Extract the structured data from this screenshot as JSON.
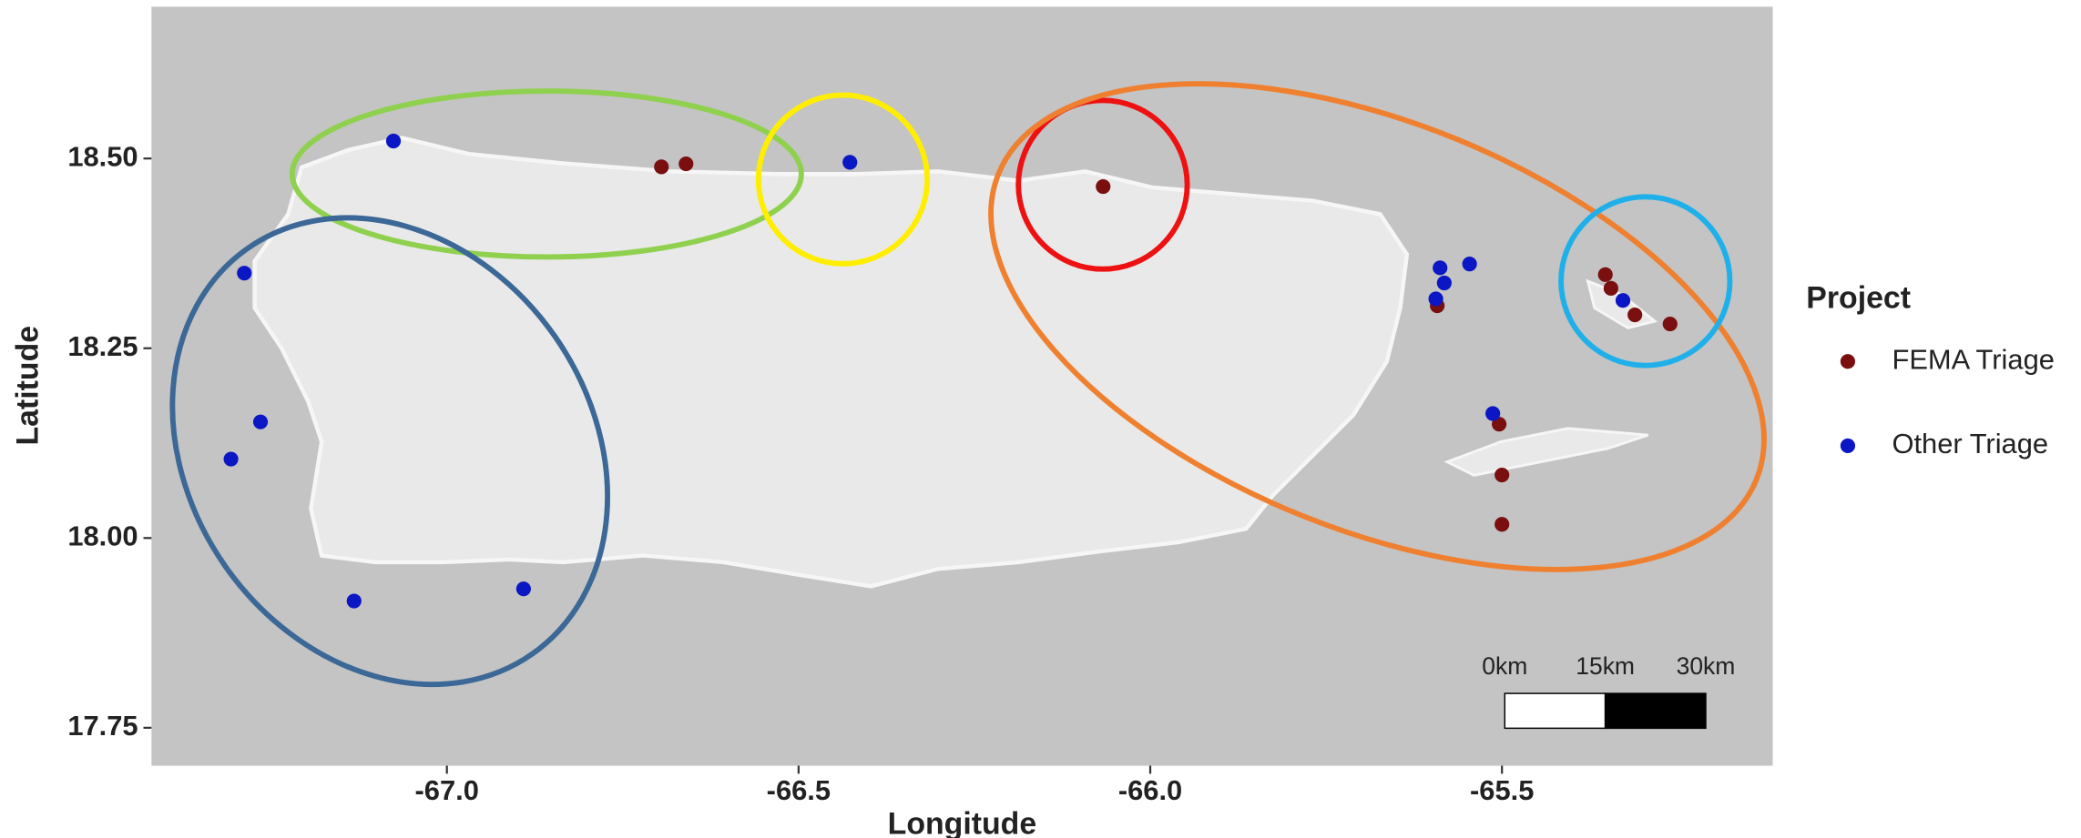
{
  "chart_data": {
    "type": "scatter",
    "xlabel": "Longitude",
    "ylabel": "Latitude",
    "xlim": [
      -67.42,
      -65.115
    ],
    "ylim": [
      17.7,
      18.7
    ],
    "xticks": [
      {
        "value": -67.0,
        "label": "-67.0"
      },
      {
        "value": -66.5,
        "label": "-66.5"
      },
      {
        "value": -66.0,
        "label": "-66.0"
      },
      {
        "value": -65.5,
        "label": "-65.5"
      }
    ],
    "yticks": [
      {
        "value": 17.75,
        "label": "17.75"
      },
      {
        "value": 18.0,
        "label": "18.00"
      },
      {
        "value": 18.25,
        "label": "18.25"
      },
      {
        "value": 18.5,
        "label": "18.50"
      }
    ],
    "legend_title": "Project",
    "series": [
      {
        "name": "FEMA Triage",
        "color": "#7a0f0f",
        "x": [
          -66.695,
          -66.66,
          -66.067,
          -65.592,
          -65.504,
          -65.5,
          -65.5,
          -65.353,
          -65.345,
          -65.311,
          -65.261
        ],
        "y": [
          18.489,
          18.493,
          18.463,
          18.306,
          18.15,
          18.083,
          18.018,
          18.347,
          18.329,
          18.294,
          18.282
        ]
      },
      {
        "name": "Other Triage",
        "color": "#0b16c4",
        "x": [
          -67.288,
          -67.265,
          -67.307,
          -66.427,
          -65.588,
          -65.582,
          -65.594,
          -65.546,
          -65.513,
          -65.328,
          -67.076,
          -67.132,
          -66.891
        ],
        "y": [
          18.349,
          18.153,
          18.104,
          18.495,
          18.356,
          18.336,
          18.315,
          18.361,
          18.164,
          18.313,
          18.523,
          17.917,
          17.933
        ]
      }
    ],
    "scale_bar": {
      "labels": [
        "0km",
        "15km",
        "30km"
      ]
    }
  }
}
